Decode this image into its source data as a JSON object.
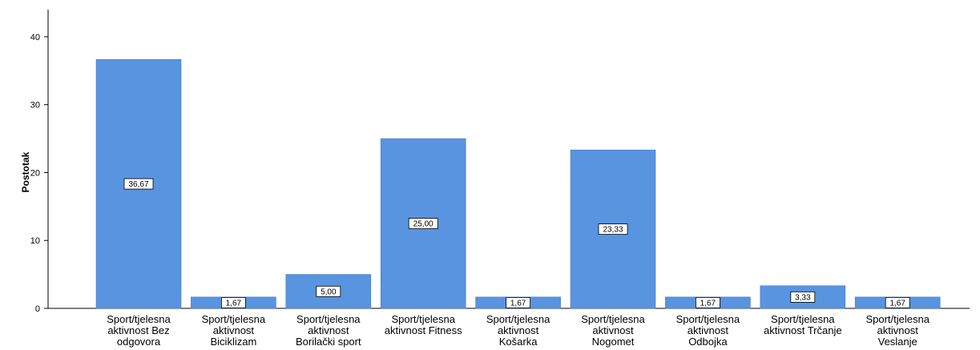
{
  "header_text": "",
  "chart_data": {
    "type": "bar",
    "title": "",
    "xlabel": "",
    "ylabel": "Postotak",
    "ylim": [
      0,
      44
    ],
    "yticks": [
      0,
      10,
      20,
      30,
      40
    ],
    "grid": false,
    "bar_color": "#5894e0",
    "categories": [
      [
        "Sport/tjelesna",
        "aktivnost Bez",
        "odgovora"
      ],
      [
        "Sport/tjelesna",
        "aktivnost",
        "Biciklizam"
      ],
      [
        "Sport/tjelesna",
        "aktivnost",
        "Borilački sport"
      ],
      [
        "Sport/tjelesna",
        "aktivnost Fitness"
      ],
      [
        "Sport/tjelesna",
        "aktivnost",
        "Košarka"
      ],
      [
        "Sport/tjelesna",
        "aktivnost",
        "Nogomet"
      ],
      [
        "Sport/tjelesna",
        "aktivnost",
        "Odbojka"
      ],
      [
        "Sport/tjelesna",
        "aktivnost Trčanje"
      ],
      [
        "Sport/tjelesna",
        "aktivnost",
        "Veslanje"
      ]
    ],
    "values": [
      36.67,
      1.67,
      5.0,
      25.0,
      1.67,
      23.33,
      1.67,
      3.33,
      1.67
    ],
    "data_labels": [
      "36,67",
      "1,67",
      "5,00",
      "25,00",
      "1,67",
      "23,33",
      "1,67",
      "3,33",
      "1,67"
    ]
  }
}
